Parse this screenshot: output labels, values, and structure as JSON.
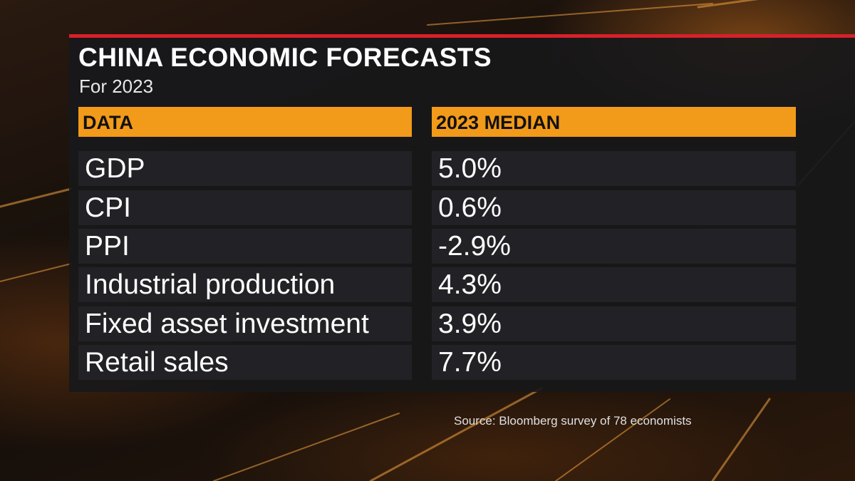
{
  "title": "CHINA ECONOMIC FORECASTS",
  "subtitle": "For 2023",
  "source": "Source: Bloomberg survey of 78 economists",
  "colors": {
    "accent_orange": "#f29a1a",
    "accent_red": "#d8202a",
    "panel": "#18181a",
    "cell": "#222226"
  },
  "chart_data": {
    "type": "table",
    "title": "CHINA ECONOMIC FORECASTS",
    "subtitle": "For 2023",
    "columns": [
      "DATA",
      "2023 MEDIAN"
    ],
    "rows": [
      {
        "label": "GDP",
        "value": "5.0%"
      },
      {
        "label": "CPI",
        "value": "0.6%"
      },
      {
        "label": "PPI",
        "value": "-2.9%"
      },
      {
        "label": "Industrial production",
        "value": "4.3%"
      },
      {
        "label": "Fixed asset investment",
        "value": "3.9%"
      },
      {
        "label": "Retail sales",
        "value": "7.7%"
      }
    ]
  }
}
